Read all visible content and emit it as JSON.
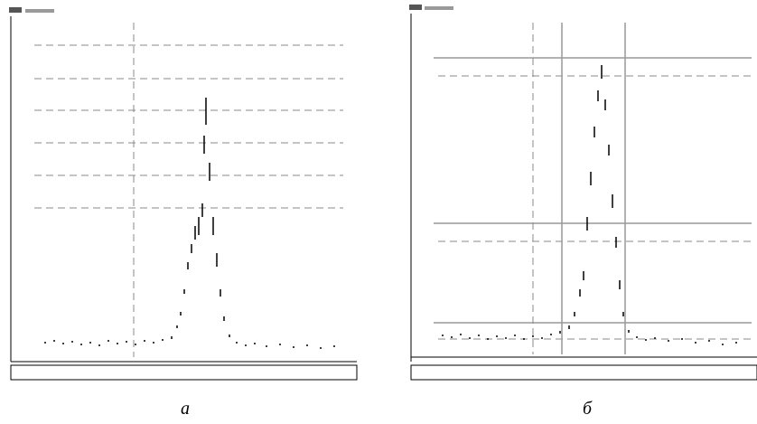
{
  "panels": [
    {
      "caption": "а"
    },
    {
      "caption": "б"
    }
  ]
}
